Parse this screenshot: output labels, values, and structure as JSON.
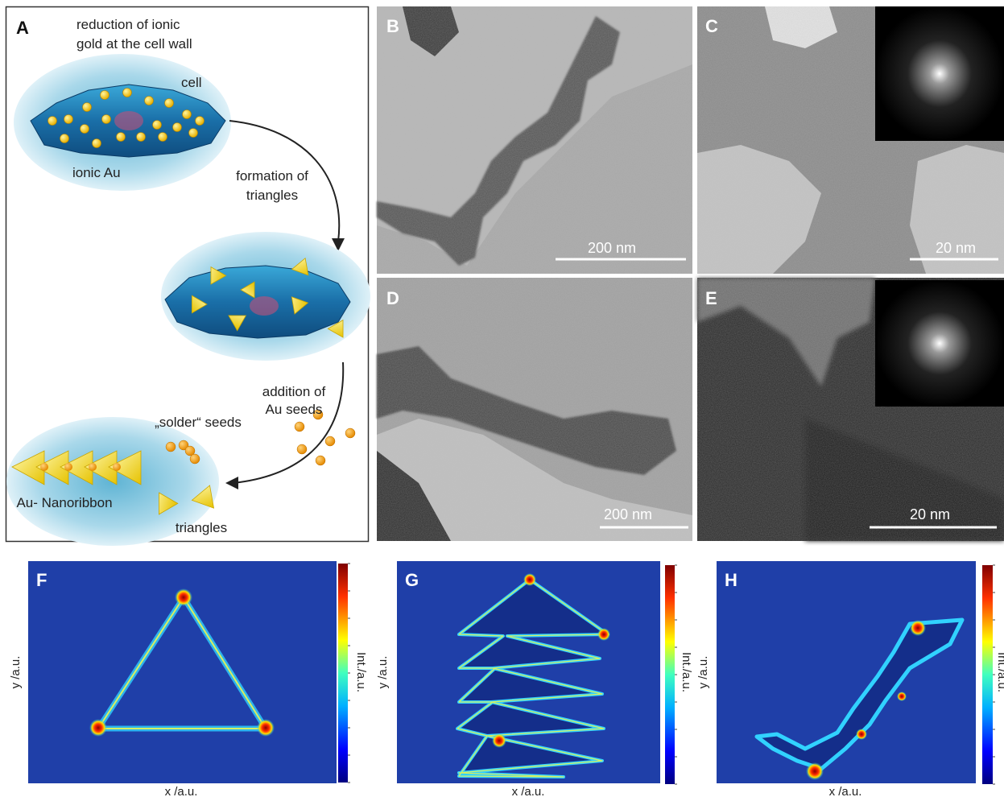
{
  "panels": {
    "a": {
      "label": "A",
      "caption_lines": [
        "reduction of ionic",
        "gold at the cell wall"
      ],
      "cell": "cell",
      "ionic": "ionic Au",
      "step1_lines": [
        "formation of",
        "triangles"
      ],
      "step2_lines": [
        "addition of",
        "Au seeds"
      ],
      "seeds": "„solder“ seeds",
      "ribbon": "Au- Nanoribbon",
      "triangles": "triangles"
    },
    "b": {
      "label": "B",
      "scale_bar": "200 nm"
    },
    "c": {
      "label": "C",
      "scale_bar": "20 nm"
    },
    "d": {
      "label": "D",
      "scale_bar": "200 nm"
    },
    "e": {
      "label": "E",
      "scale_bar": "20 nm"
    },
    "f": {
      "label": "F",
      "x_axis": "x /a.u.",
      "y_axis": "y /a.u.",
      "colorbar": "Int./a.u."
    },
    "g": {
      "label": "G",
      "x_axis": "x /a.u.",
      "y_axis": "y /a.u.",
      "colorbar": "Int./a.u."
    },
    "h": {
      "label": "H",
      "x_axis": "x /a.u.",
      "y_axis": "y /a.u.",
      "colorbar": "Int./a.u."
    }
  }
}
